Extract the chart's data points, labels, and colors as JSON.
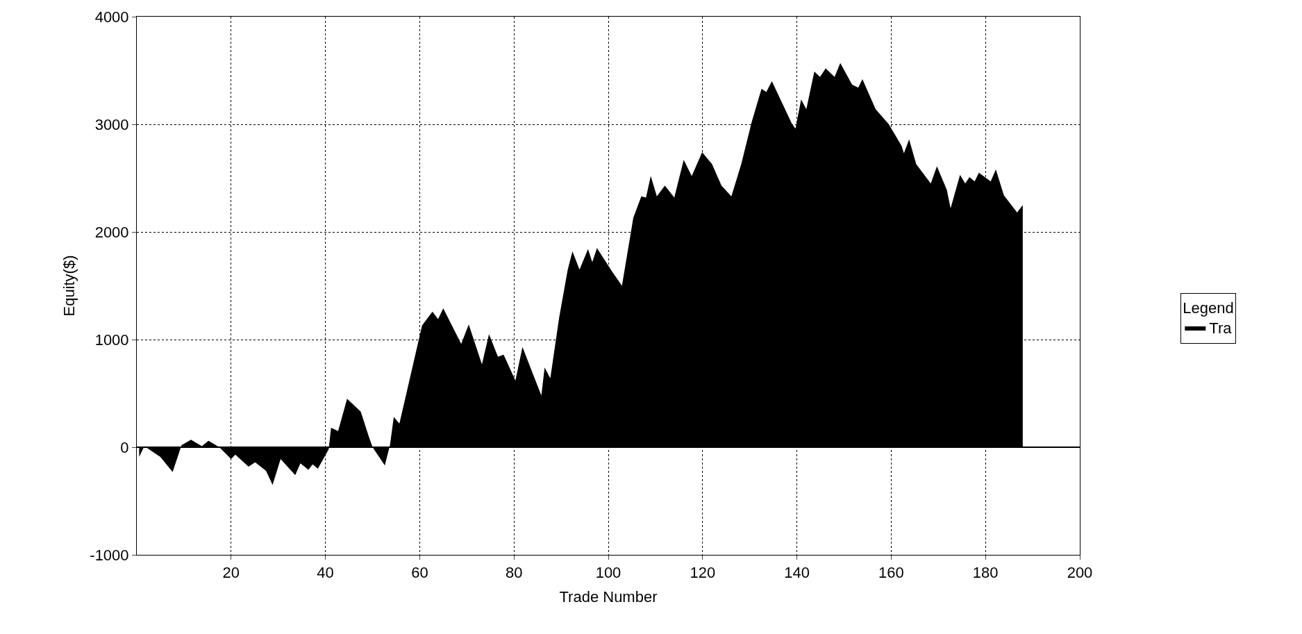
{
  "chart_data": {
    "type": "area",
    "xlabel": "Trade Number",
    "ylabel": "Equity($)",
    "legend_title": "Legend",
    "legend": "right",
    "grid": true,
    "line_style": "dotted",
    "xlim": [
      0,
      200
    ],
    "xticks": [
      20,
      40,
      60,
      80,
      100,
      120,
      140,
      160,
      180,
      200
    ],
    "ylim": [
      -1000,
      4000
    ],
    "yticks": [
      -1000,
      0,
      1000,
      2000,
      3000,
      4000
    ],
    "series": [
      {
        "name": "Tra",
        "color": "#000000",
        "x": [
          0.5,
          1.6,
          5,
          7.6,
          9.5,
          11.5,
          13.8,
          15.2,
          17.5,
          20,
          20.9,
          23.7,
          25.1,
          27.4,
          28.8,
          30.5,
          33.6,
          34.7,
          36.4,
          37.3,
          38.4,
          40.7,
          41.2,
          42.7,
          44.6,
          47.5,
          49.2,
          50,
          52.6,
          53.7,
          54.5,
          55.7,
          60.5,
          62.7,
          63.9,
          65,
          68.8,
          70.4,
          73.2,
          74.7,
          76.6,
          77.8,
          80.3,
          81.8,
          85.8,
          86.5,
          87.7,
          89.6,
          91.4,
          92.4,
          93.9,
          95.7,
          96.6,
          97.6,
          101,
          102.9,
          105.3,
          107,
          108,
          109,
          110.3,
          112,
          114,
          116,
          117.7,
          119.9,
          122,
          124,
          126.1,
          128.2,
          130.4,
          132.5,
          133.5,
          134.7,
          139,
          139.7,
          140.9,
          142,
          143.7,
          144.9,
          146.1,
          148,
          149.2,
          151.7,
          153,
          153.9,
          156.7,
          159.5,
          162.2,
          162.7,
          163.8,
          165.3,
          168.4,
          169.7,
          171.8,
          172.6,
          174.6,
          175.7,
          176.6,
          177.7,
          178.6,
          181.1,
          182.2,
          183.9,
          186.7,
          187.9
        ],
        "values": [
          -90,
          10,
          -90,
          -230,
          20,
          70,
          10,
          60,
          0,
          -110,
          -70,
          -180,
          -140,
          -220,
          -350,
          -110,
          -260,
          -150,
          -210,
          -160,
          -200,
          -20,
          180,
          150,
          450,
          330,
          100,
          0,
          -170,
          20,
          280,
          220,
          1130,
          1260,
          1190,
          1290,
          960,
          1140,
          770,
          1050,
          840,
          860,
          620,
          930,
          480,
          740,
          640,
          1210,
          1650,
          1820,
          1650,
          1840,
          1720,
          1850,
          1620,
          1500,
          2130,
          2330,
          2320,
          2520,
          2330,
          2430,
          2320,
          2670,
          2520,
          2740,
          2630,
          2430,
          2330,
          2630,
          3020,
          3330,
          3300,
          3400,
          3000,
          2960,
          3230,
          3140,
          3490,
          3440,
          3520,
          3440,
          3570,
          3370,
          3340,
          3420,
          3140,
          3000,
          2800,
          2730,
          2860,
          2630,
          2450,
          2610,
          2390,
          2220,
          2530,
          2450,
          2510,
          2470,
          2550,
          2470,
          2580,
          2340,
          2180,
          2250
        ]
      }
    ]
  }
}
